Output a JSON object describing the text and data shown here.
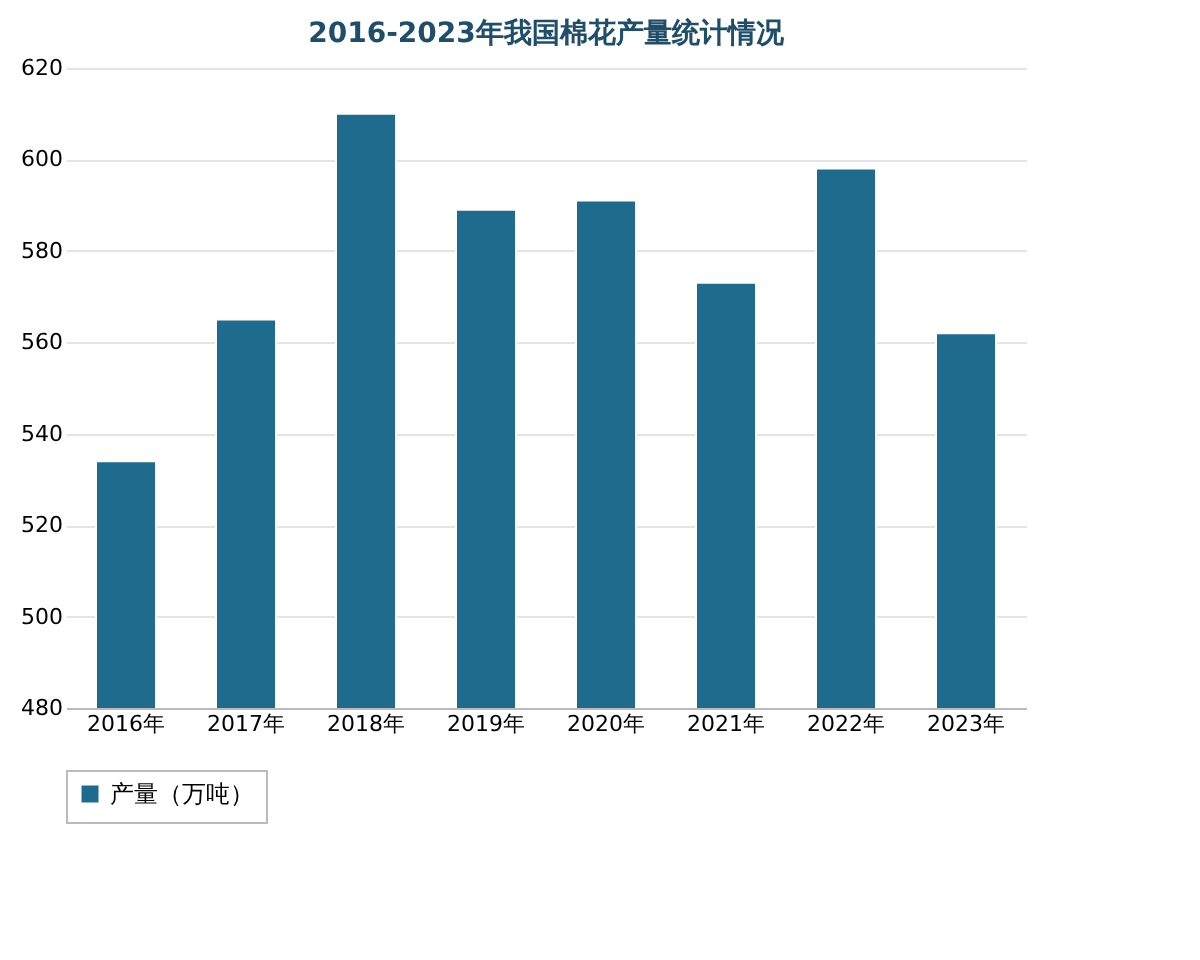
{
  "chart_data": {
    "type": "bar",
    "title": "2016-2023年我国棉花产量统计情况",
    "categories": [
      "2016年",
      "2017年",
      "2018年",
      "2019年",
      "2020年",
      "2021年",
      "2022年",
      "2023年"
    ],
    "series": [
      {
        "name": "产量（万吨）",
        "color": "#1f6b8e",
        "values": [
          534,
          565,
          610,
          589,
          591,
          573,
          598,
          562
        ]
      }
    ],
    "ylim": [
      480,
      620
    ],
    "yticks": [
      480,
      500,
      520,
      540,
      560,
      580,
      600,
      620
    ],
    "grid": "y",
    "legend": "bottom"
  }
}
